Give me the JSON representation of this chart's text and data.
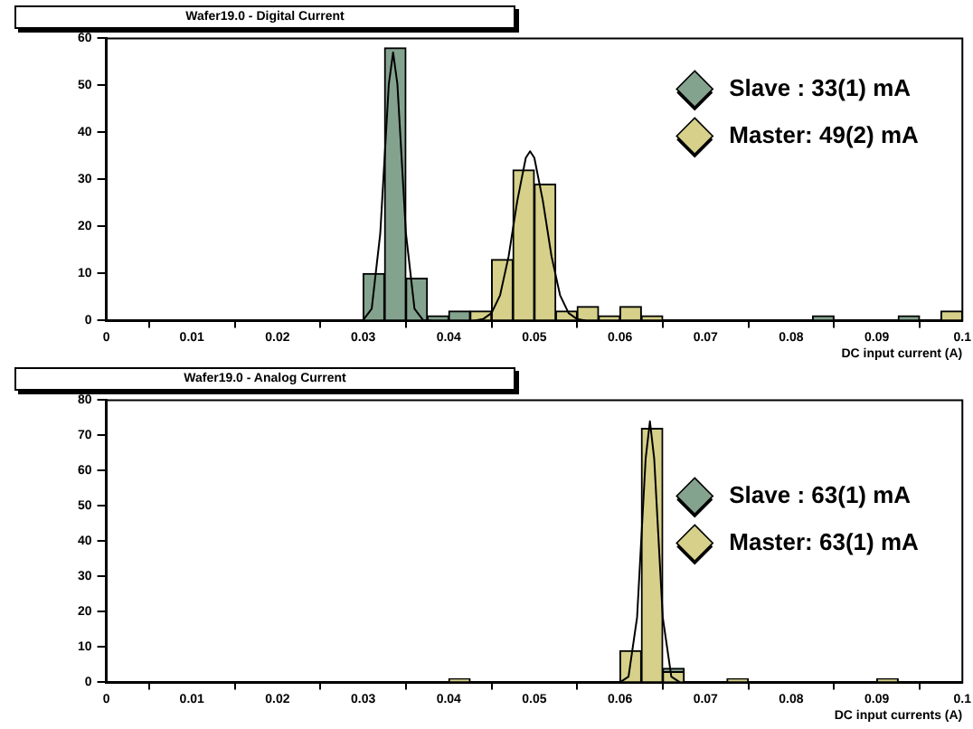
{
  "chart_data": [
    {
      "type": "histogram",
      "title": "Wafer19.0 - Digital Current",
      "xlabel": "DC input current (A)",
      "bins": [
        0,
        0.0025,
        0.005,
        0.0075,
        0.01,
        0.0125,
        0.015,
        0.0175,
        0.02,
        0.0225,
        0.025,
        0.0275,
        0.03,
        0.0325,
        0.035,
        0.0375,
        0.04,
        0.0425,
        0.045,
        0.0475,
        0.05,
        0.0525,
        0.055,
        0.0575,
        0.06,
        0.0625,
        0.065,
        0.0675,
        0.07,
        0.0725,
        0.075,
        0.0775,
        0.08,
        0.0825,
        0.085,
        0.0875,
        0.09,
        0.0925,
        0.095,
        0.0975,
        0.1
      ],
      "series": [
        {
          "name": "Slave : 33(1) mA",
          "color": "#84a38f",
          "values": [
            0,
            0,
            0,
            0,
            0,
            0,
            0,
            0,
            0,
            0,
            0,
            0,
            10,
            58,
            9,
            1,
            2,
            0,
            0,
            0,
            0,
            0,
            0,
            0,
            0,
            0,
            0,
            0,
            0,
            0,
            0,
            0,
            0,
            1,
            0,
            0,
            0,
            1,
            0,
            0
          ]
        },
        {
          "name": "Master: 49(2) mA",
          "color": "#d6d08a",
          "values": [
            0,
            0,
            0,
            0,
            0,
            0,
            0,
            0,
            0,
            0,
            0,
            0,
            0,
            0,
            0,
            0,
            0,
            2,
            13,
            32,
            29,
            2,
            3,
            1,
            3,
            1,
            0,
            0,
            0,
            0,
            0,
            0,
            0,
            0,
            0,
            0,
            0,
            0,
            0,
            2
          ]
        },
        {
          "type": "line",
          "color": "#000000",
          "x": [
            0.029,
            0.03,
            0.031,
            0.032,
            0.033,
            0.0335,
            0.034,
            0.035,
            0.036,
            0.037,
            0.038
          ],
          "values": [
            0,
            0.1,
            2.5,
            18.5,
            50.3,
            57,
            50.3,
            18.5,
            2.5,
            0.1,
            0
          ]
        },
        {
          "type": "line",
          "color": "#000000",
          "x": [
            0.043,
            0.044,
            0.045,
            0.046,
            0.047,
            0.048,
            0.049,
            0.0495,
            0.05,
            0.051,
            0.052,
            0.053,
            0.054,
            0.055,
            0.056
          ],
          "values": [
            0,
            0.3,
            1.6,
            5.4,
            13.7,
            25.4,
            34.6,
            36,
            34.6,
            25.4,
            13.7,
            5.4,
            1.6,
            0.3,
            0
          ]
        }
      ],
      "xlim": [
        0,
        0.1
      ],
      "xticks": [
        0,
        0.01,
        0.02,
        0.03,
        0.04,
        0.05,
        0.06,
        0.07,
        0.08,
        0.09,
        0.1
      ],
      "ylim": [
        0,
        60
      ],
      "yticks": [
        0,
        10,
        20,
        30,
        40,
        50,
        60
      ],
      "grid": false,
      "legend": "top right"
    },
    {
      "type": "histogram",
      "title": "Wafer19.0 - Analog Current",
      "xlabel": "DC input currents (A)",
      "bins": [
        0,
        0.0025,
        0.005,
        0.0075,
        0.01,
        0.0125,
        0.015,
        0.0175,
        0.02,
        0.0225,
        0.025,
        0.0275,
        0.03,
        0.0325,
        0.035,
        0.0375,
        0.04,
        0.0425,
        0.045,
        0.0475,
        0.05,
        0.0525,
        0.055,
        0.0575,
        0.06,
        0.0625,
        0.065,
        0.0675,
        0.07,
        0.0725,
        0.075,
        0.0775,
        0.08,
        0.0825,
        0.085,
        0.0875,
        0.09,
        0.0925,
        0.095,
        0.0975,
        0.1
      ],
      "series": [
        {
          "name": "Slave : 63(1) mA",
          "color": "#84a38f",
          "values": [
            0,
            0,
            0,
            0,
            0,
            0,
            0,
            0,
            0,
            0,
            0,
            0,
            0,
            0,
            0,
            0,
            0,
            0,
            0,
            0,
            0,
            0,
            0,
            0,
            null,
            null,
            4,
            0,
            0,
            0,
            0,
            0,
            0,
            0,
            0,
            0,
            0,
            0,
            0,
            0
          ]
        },
        {
          "name": "Master: 63(1) mA",
          "color": "#d6d08a",
          "values": [
            0,
            0,
            0,
            0,
            0,
            0,
            0,
            0,
            0,
            0,
            0,
            0,
            0,
            0,
            0,
            0,
            1,
            0,
            0,
            0,
            0,
            0,
            0,
            0,
            9,
            72,
            3,
            0,
            0,
            1,
            0,
            0,
            0,
            0,
            0,
            0,
            1,
            0,
            0,
            0
          ]
        },
        {
          "type": "line",
          "color": "#000000",
          "x": [
            0.06,
            0.061,
            0.062,
            0.063,
            0.0635,
            0.064,
            0.065,
            0.066,
            0.067
          ],
          "values": [
            0,
            1.6,
            18.4,
            63.4,
            74,
            63.4,
            18.4,
            1.6,
            0
          ]
        }
      ],
      "xlim": [
        0,
        0.1
      ],
      "xticks": [
        0,
        0.01,
        0.02,
        0.03,
        0.04,
        0.05,
        0.06,
        0.07,
        0.08,
        0.09,
        0.1
      ],
      "ylim": [
        0,
        80
      ],
      "yticks": [
        0,
        10,
        20,
        30,
        40,
        50,
        60,
        70,
        80
      ],
      "grid": false,
      "legend": "right"
    }
  ]
}
